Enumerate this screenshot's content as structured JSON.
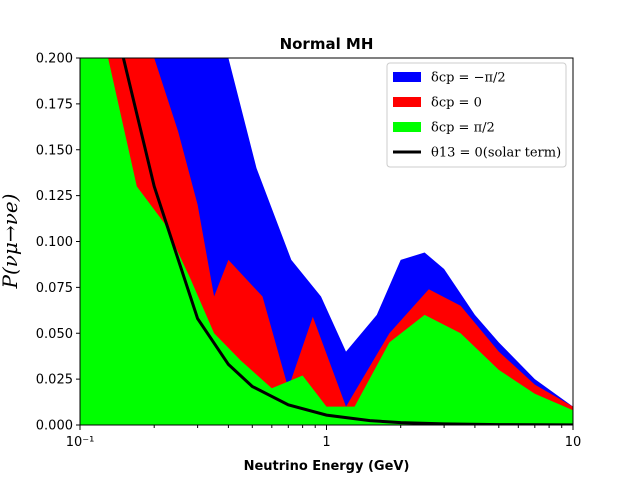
{
  "chart_data": {
    "type": "area",
    "title": "Normal MH",
    "xlabel": "Neutrino Energy (GeV)",
    "ylabel": "P(νμ→νe)",
    "xscale": "log",
    "xlim": [
      0.1,
      10
    ],
    "ylim": [
      0,
      0.2
    ],
    "x_tick_labels": [
      "10⁻¹",
      "1",
      "10"
    ],
    "y_tick_labels": [
      "0.000",
      "0.025",
      "0.050",
      "0.075",
      "0.100",
      "0.125",
      "0.150",
      "0.175",
      "0.200"
    ],
    "y_tick_values": [
      0,
      0.025,
      0.05,
      0.075,
      0.1,
      0.125,
      0.15,
      0.175,
      0.2
    ],
    "legend_position": "top-right",
    "series": [
      {
        "name": "δcp = −π/2",
        "legend_label": "δcp = −π/2",
        "color": "#0000ff",
        "style": "fill",
        "x": [
          0.12,
          0.18,
          0.22,
          0.27,
          0.33,
          0.4,
          0.52,
          0.72,
          0.95,
          1.2,
          1.6,
          2.0,
          2.5,
          3.0,
          4.0,
          5.0,
          7.0,
          10.0
        ],
        "y": [
          0.2,
          0.2,
          0.2,
          0.2,
          0.2,
          0.2,
          0.14,
          0.09,
          0.07,
          0.04,
          0.06,
          0.09,
          0.094,
          0.085,
          0.06,
          0.045,
          0.025,
          0.01
        ]
      },
      {
        "name": "δcp = 0",
        "legend_label": "δcp = 0",
        "color": "#ff0000",
        "style": "fill",
        "x": [
          0.12,
          0.15,
          0.2,
          0.25,
          0.3,
          0.35,
          0.4,
          0.55,
          0.7,
          0.88,
          1.2,
          1.8,
          2.6,
          3.5,
          5.0,
          7.0,
          10.0
        ],
        "y": [
          0.2,
          0.2,
          0.2,
          0.16,
          0.12,
          0.07,
          0.09,
          0.07,
          0.02,
          0.059,
          0.01,
          0.05,
          0.074,
          0.065,
          0.04,
          0.022,
          0.01
        ]
      },
      {
        "name": "δcp = π/2",
        "legend_label": "δcp = π/2",
        "color": "#00ff00",
        "style": "fill",
        "x": [
          0.1,
          0.13,
          0.17,
          0.22,
          0.28,
          0.35,
          0.45,
          0.6,
          0.8,
          1.0,
          1.3,
          1.8,
          2.5,
          3.5,
          5.0,
          7.0,
          10.0
        ],
        "y": [
          0.2,
          0.2,
          0.13,
          0.11,
          0.08,
          0.05,
          0.035,
          0.02,
          0.027,
          0.01,
          0.01,
          0.045,
          0.06,
          0.05,
          0.03,
          0.017,
          0.008
        ]
      },
      {
        "name": "θ13 = 0(solar term)",
        "legend_label": "θ13 = 0(solar term)",
        "color": "#000000",
        "style": "line",
        "x": [
          0.15,
          0.2,
          0.3,
          0.4,
          0.5,
          0.7,
          1.0,
          1.5,
          2.0,
          3.0,
          5.0,
          10.0
        ],
        "y": [
          0.2,
          0.13,
          0.058,
          0.033,
          0.021,
          0.011,
          0.0054,
          0.0024,
          0.0013,
          0.0006,
          0.0002,
          5e-05
        ]
      }
    ]
  }
}
